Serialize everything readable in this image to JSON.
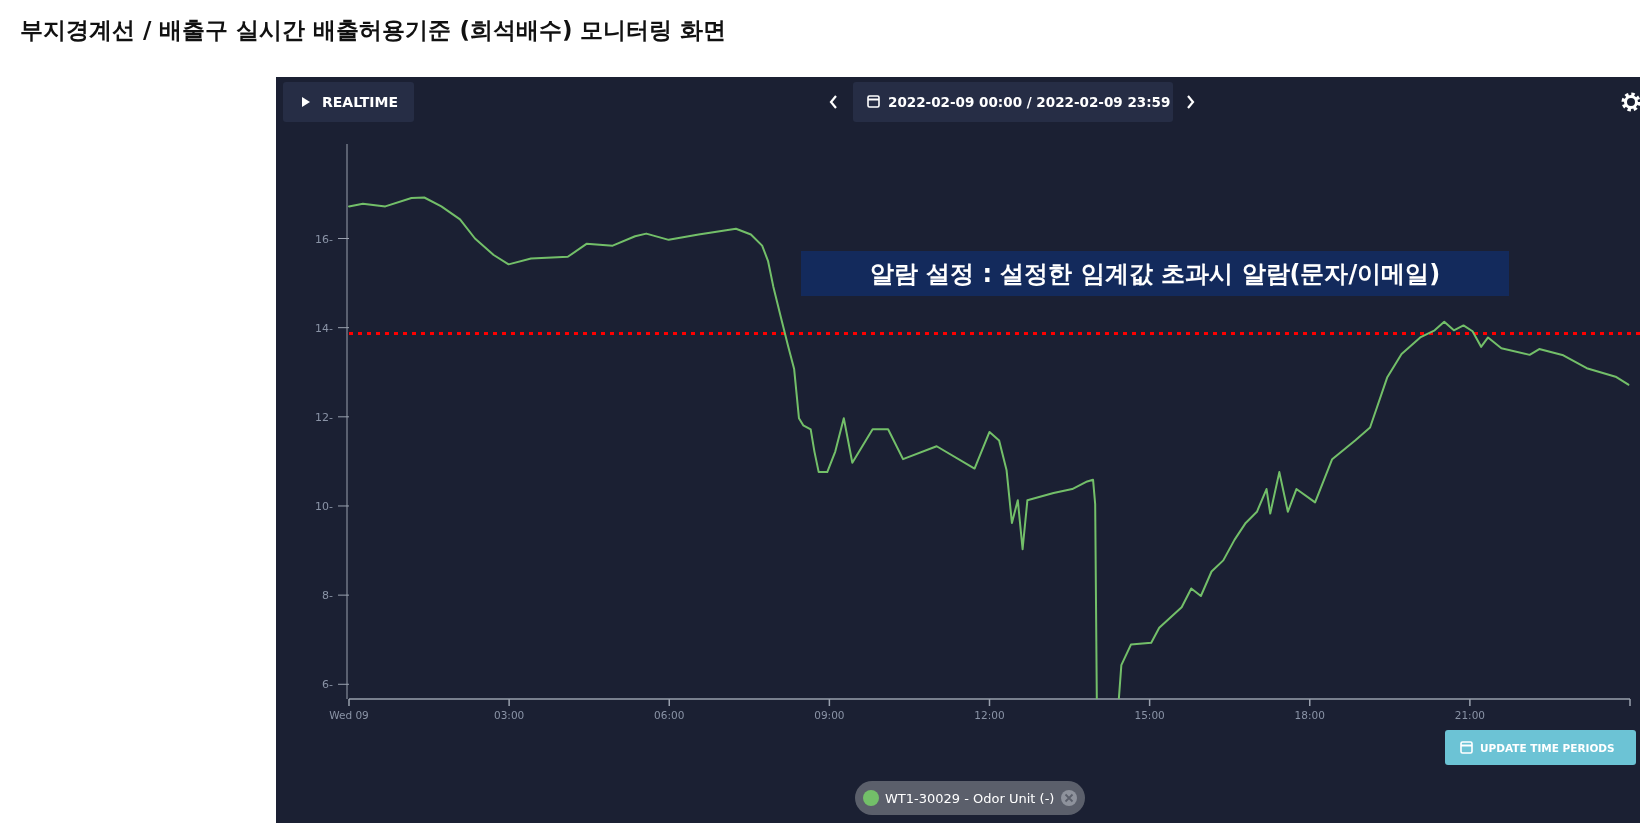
{
  "chart_data": {
    "type": "line",
    "title": "부지경계선 / 배출구 실시간 배출허용기준 (희석배수) 모니터링 화면",
    "annotations": [
      "알람 설정 : 설정한 임계값 초과시 알람(문자/이메일)",
      "REALTIME",
      "2022-02-09 00:00 / 2022-02-09 23:59",
      "UPDATE TIME PERIODS"
    ],
    "x": [
      0,
      0.26,
      0.68,
      1.17,
      1.41,
      1.73,
      2.08,
      2.36,
      2.71,
      2.99,
      3.41,
      4.1,
      4.45,
      4.94,
      5.36,
      5.57,
      5.99,
      6.55,
      7.25,
      7.53,
      7.74,
      7.85,
      7.95,
      8.09,
      8.23,
      8.34,
      8.43,
      8.51,
      8.65,
      8.72,
      8.8,
      8.96,
      9.11,
      9.27,
      9.43,
      9.81,
      10.1,
      10.38,
      11.01,
      11.72,
      12.0,
      12.18,
      12.32,
      12.42,
      12.53,
      12.62,
      12.71,
      13.2,
      13.55,
      13.83,
      13.94,
      13.98,
      14.02,
      14.34,
      14.47,
      14.65,
      15.03,
      15.18,
      15.6,
      15.78,
      15.96,
      16.16,
      16.38,
      16.59,
      16.8,
      17.01,
      17.19,
      17.26,
      17.43,
      17.59,
      17.75,
      18.1,
      18.42,
      18.85,
      19.13,
      19.45,
      19.72,
      20.07,
      20.34,
      20.52,
      20.7,
      20.88,
      21.05,
      21.21,
      21.34,
      21.59,
      22.12,
      22.3,
      22.75,
      23.19,
      23.73,
      23.97
    ],
    "series": [
      {
        "name": "WT1-30029 - Odor Unit (-)",
        "color": "#73bf69",
        "values": [
          16.72,
          16.78,
          16.72,
          16.91,
          16.92,
          16.72,
          16.43,
          16.0,
          15.63,
          15.42,
          15.55,
          15.59,
          15.88,
          15.84,
          16.05,
          16.11,
          15.97,
          16.09,
          16.22,
          16.09,
          15.84,
          15.5,
          14.92,
          14.24,
          13.57,
          13.07,
          11.97,
          11.81,
          11.72,
          11.22,
          10.76,
          10.76,
          11.22,
          11.97,
          10.97,
          11.72,
          11.72,
          11.05,
          11.34,
          10.84,
          11.66,
          11.47,
          10.8,
          9.62,
          10.13,
          9.03,
          10.13,
          10.29,
          10.38,
          10.55,
          10.59,
          10.04,
          null,
          null,
          6.43,
          6.89,
          6.93,
          7.27,
          7.73,
          8.15,
          7.98,
          8.53,
          8.78,
          9.24,
          9.62,
          9.87,
          10.38,
          9.83,
          10.76,
          9.87,
          10.38,
          10.08,
          11.05,
          11.47,
          11.76,
          12.88,
          13.41,
          13.78,
          13.94,
          14.13,
          13.94,
          14.05,
          13.92,
          13.57,
          13.78,
          13.54,
          13.39,
          13.52,
          13.38,
          13.09,
          12.9,
          12.72
        ]
      }
    ],
    "xlim": [
      0,
      24
    ],
    "ylim": [
      5.67,
      18.12
    ],
    "xticks": [
      {
        "value": 0,
        "label": "Wed 09"
      },
      {
        "value": 3,
        "label": "03:00"
      },
      {
        "value": 6,
        "label": "06:00"
      },
      {
        "value": 9,
        "label": "09:00"
      },
      {
        "value": 12,
        "label": "12:00"
      },
      {
        "value": 15,
        "label": "15:00"
      },
      {
        "value": 18,
        "label": "18:00"
      },
      {
        "value": 21,
        "label": "21:00"
      },
      {
        "value": 24,
        "label": null
      }
    ],
    "yticks": [
      {
        "value": 6,
        "label": "6-"
      },
      {
        "value": 8,
        "label": "8-"
      },
      {
        "value": 10,
        "label": "10-"
      },
      {
        "value": 12,
        "label": "12-"
      },
      {
        "value": 14,
        "label": "14-"
      },
      {
        "value": 16,
        "label": "16-"
      }
    ],
    "ref_lines": [
      {
        "axis": "y",
        "value": 13.87,
        "color": "#ff0000",
        "line_style": "dotted"
      }
    ],
    "grid": false,
    "legend": "bottom",
    "marker": "none",
    "line_style": "solid"
  }
}
